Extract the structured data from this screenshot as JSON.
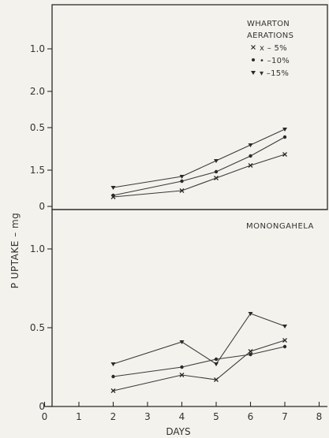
{
  "chart_data": [
    {
      "type": "line",
      "panel": "top",
      "title": "",
      "legend_title": [
        "WHARTON",
        "AERATIONS"
      ],
      "legend_placement": "top-right",
      "xlabel": "DAYS",
      "ylabel": "P UPTAKE – mg",
      "xlim": [
        0,
        8
      ],
      "ylim": [
        0,
        2.5
      ],
      "y_ticks": [
        "0",
        "0.5",
        "1.0",
        "1.5",
        "2.0"
      ],
      "y_tick_values": [
        0,
        0.5,
        1.0,
        1.5,
        2.0
      ],
      "grid": false,
      "x": [
        2,
        4,
        5,
        6,
        7
      ],
      "series": [
        {
          "name": "x – 5%",
          "marker": "x",
          "values": [
            0.06,
            0.1,
            0.18,
            0.26,
            0.33
          ]
        },
        {
          "name": "• –10%",
          "marker": "dot",
          "values": [
            0.07,
            0.16,
            0.22,
            0.32,
            0.44
          ]
        },
        {
          "name": "▾ –15%",
          "marker": "triangle",
          "values": [
            0.12,
            0.19,
            0.29,
            0.39,
            0.49
          ]
        }
      ]
    },
    {
      "type": "line",
      "panel": "bottom",
      "title": "MONONGAHELA",
      "xlabel": "DAYS",
      "ylabel": "P UPTAKE – mg",
      "xlim": [
        0,
        8
      ],
      "ylim": [
        0,
        2.5
      ],
      "x_ticks": [
        "0",
        "1",
        "2",
        "3",
        "4",
        "5",
        "6",
        "7",
        "8"
      ],
      "x_tick_values": [
        0,
        1,
        2,
        3,
        4,
        5,
        6,
        7,
        8
      ],
      "y_ticks": [
        "0",
        "0.5",
        "1.0",
        "1.5",
        "2.0"
      ],
      "y_tick_values": [
        0,
        0.5,
        1.0,
        1.5,
        2.0
      ],
      "grid": false,
      "x": [
        2,
        4,
        5,
        6,
        7
      ],
      "series": [
        {
          "marker": "x",
          "values": [
            0.1,
            0.2,
            0.17,
            0.35,
            0.42
          ]
        },
        {
          "marker": "dot",
          "values": [
            0.19,
            0.25,
            0.3,
            0.33,
            0.38
          ]
        },
        {
          "marker": "triangle",
          "values": [
            0.27,
            0.41,
            0.27,
            0.59,
            0.51
          ]
        }
      ]
    }
  ]
}
